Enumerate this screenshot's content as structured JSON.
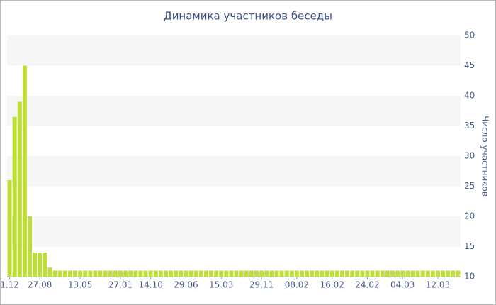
{
  "chart_data": {
    "type": "bar",
    "title": "Динамика участников беседы",
    "y_label": "Число участников",
    "categories": [
      "1.12",
      null,
      null,
      null,
      null,
      null,
      "27.08",
      null,
      null,
      null,
      null,
      null,
      null,
      null,
      "13.05",
      null,
      null,
      null,
      null,
      null,
      null,
      null,
      "27.01",
      null,
      null,
      null,
      null,
      null,
      "14.10",
      null,
      null,
      null,
      null,
      null,
      null,
      "29.06",
      null,
      null,
      null,
      null,
      null,
      null,
      "15.03",
      null,
      null,
      null,
      null,
      null,
      null,
      null,
      "29.11",
      null,
      null,
      null,
      null,
      null,
      null,
      "08.02",
      null,
      null,
      null,
      null,
      null,
      null,
      "16.02",
      null,
      null,
      null,
      null,
      null,
      null,
      "24.02",
      null,
      null,
      null,
      null,
      null,
      null,
      "04.03",
      null,
      null,
      null,
      null,
      null,
      null,
      "12.03",
      null,
      null,
      null,
      null
    ],
    "values": [
      26,
      36.5,
      39,
      45,
      20,
      14,
      14,
      14,
      11.5,
      11,
      11,
      11,
      11,
      11,
      11,
      11,
      11,
      11,
      11,
      11,
      11,
      11,
      11,
      11,
      11,
      11,
      11,
      11,
      11,
      11,
      11,
      11,
      11,
      11,
      11,
      11,
      11,
      11,
      11,
      11,
      11,
      11,
      11,
      11,
      11,
      11,
      11,
      11,
      11,
      11,
      11,
      11,
      11,
      11,
      11,
      11,
      11,
      11,
      11,
      11,
      11,
      11,
      11,
      11,
      11,
      11,
      11,
      11,
      11,
      11,
      11,
      11,
      11,
      11,
      11,
      11,
      11,
      11,
      11,
      11,
      11,
      11,
      11,
      11,
      11,
      11,
      11,
      11,
      11,
      11
    ],
    "color": "#bedd3a",
    "ylim": [
      10,
      50
    ],
    "yticks": [
      10,
      15,
      20,
      25,
      30,
      35,
      40,
      45,
      50
    ],
    "grid": "bands",
    "y_axis_side": "right"
  }
}
